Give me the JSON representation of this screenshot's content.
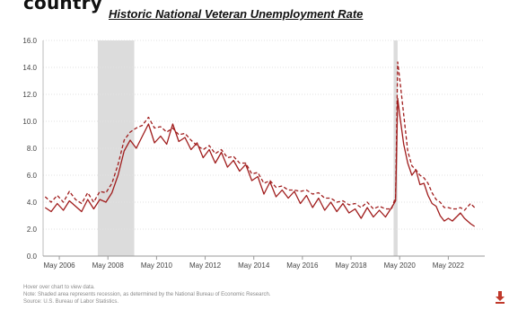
{
  "page": {
    "heading_word": "country",
    "notes": [
      "Hover over chart to view data.",
      "Note: Shaded area represents recession, as determined by the National Bureau of Economic Research.",
      "Source: U.S. Bureau of Labor Statistics."
    ],
    "download_icon": "download-icon"
  },
  "chart_data": {
    "type": "line",
    "title": "Historic National Veteran Unemployment Rate",
    "xlabel": "",
    "ylabel": "",
    "ylim": [
      0,
      16
    ],
    "yticks": [
      0.0,
      2.0,
      4.0,
      6.0,
      8.0,
      10.0,
      12.0,
      14.0,
      16.0
    ],
    "ytick_labels": [
      "0.0",
      "2.0",
      "4.0",
      "6.0",
      "8.0",
      "10.0",
      "12.0",
      "14.0",
      "16.0"
    ],
    "xlim": [
      "2005-09",
      "2023-11"
    ],
    "xticks": [
      "May 2006",
      "May 2008",
      "May 2010",
      "May 2012",
      "May 2014",
      "May 2016",
      "May 2018",
      "May 2020",
      "May 2022"
    ],
    "grid": true,
    "recessions": [
      {
        "start": "2007-12",
        "end": "2009-06"
      },
      {
        "start": "2020-02",
        "end": "2020-04"
      }
    ],
    "colors": {
      "series": "#a01c1c",
      "recession": "#dcdcdc",
      "grid": "#e2e2e2"
    },
    "series": [
      {
        "style": "solid",
        "points": [
          [
            "2005-10",
            3.6
          ],
          [
            "2006-01",
            3.3
          ],
          [
            "2006-04",
            3.9
          ],
          [
            "2006-07",
            3.4
          ],
          [
            "2006-10",
            4.1
          ],
          [
            "2007-01",
            3.7
          ],
          [
            "2007-04",
            3.3
          ],
          [
            "2007-07",
            4.2
          ],
          [
            "2007-10",
            3.5
          ],
          [
            "2008-01",
            4.2
          ],
          [
            "2008-04",
            4.0
          ],
          [
            "2008-07",
            4.7
          ],
          [
            "2008-10",
            6.0
          ],
          [
            "2009-01",
            7.8
          ],
          [
            "2009-04",
            8.6
          ],
          [
            "2009-07",
            8.0
          ],
          [
            "2009-10",
            8.9
          ],
          [
            "2010-01",
            9.8
          ],
          [
            "2010-04",
            8.4
          ],
          [
            "2010-07",
            8.9
          ],
          [
            "2010-10",
            8.3
          ],
          [
            "2011-01",
            9.8
          ],
          [
            "2011-04",
            8.5
          ],
          [
            "2011-07",
            8.8
          ],
          [
            "2011-10",
            7.9
          ],
          [
            "2012-01",
            8.4
          ],
          [
            "2012-04",
            7.3
          ],
          [
            "2012-07",
            7.9
          ],
          [
            "2012-10",
            6.9
          ],
          [
            "2013-01",
            7.7
          ],
          [
            "2013-04",
            6.6
          ],
          [
            "2013-07",
            7.1
          ],
          [
            "2013-10",
            6.3
          ],
          [
            "2014-01",
            6.8
          ],
          [
            "2014-04",
            5.6
          ],
          [
            "2014-07",
            5.9
          ],
          [
            "2014-10",
            4.6
          ],
          [
            "2015-01",
            5.5
          ],
          [
            "2015-04",
            4.4
          ],
          [
            "2015-07",
            4.9
          ],
          [
            "2015-10",
            4.3
          ],
          [
            "2016-01",
            4.8
          ],
          [
            "2016-04",
            3.9
          ],
          [
            "2016-07",
            4.5
          ],
          [
            "2016-10",
            3.6
          ],
          [
            "2017-01",
            4.3
          ],
          [
            "2017-04",
            3.4
          ],
          [
            "2017-07",
            4.0
          ],
          [
            "2017-10",
            3.3
          ],
          [
            "2018-01",
            3.9
          ],
          [
            "2018-04",
            3.2
          ],
          [
            "2018-07",
            3.5
          ],
          [
            "2018-10",
            2.8
          ],
          [
            "2019-01",
            3.6
          ],
          [
            "2019-04",
            2.9
          ],
          [
            "2019-07",
            3.4
          ],
          [
            "2019-10",
            2.9
          ],
          [
            "2020-01",
            3.6
          ],
          [
            "2020-03",
            4.1
          ],
          [
            "2020-04",
            11.7
          ],
          [
            "2020-05",
            10.5
          ],
          [
            "2020-07",
            8.3
          ],
          [
            "2020-09",
            6.9
          ],
          [
            "2020-11",
            6.0
          ],
          [
            "2021-01",
            6.4
          ],
          [
            "2021-03",
            5.3
          ],
          [
            "2021-05",
            5.4
          ],
          [
            "2021-07",
            4.5
          ],
          [
            "2021-09",
            3.9
          ],
          [
            "2021-11",
            3.7
          ],
          [
            "2022-01",
            3.0
          ],
          [
            "2022-03",
            2.6
          ],
          [
            "2022-05",
            2.8
          ],
          [
            "2022-07",
            2.6
          ],
          [
            "2022-09",
            2.9
          ],
          [
            "2022-11",
            3.2
          ],
          [
            "2023-01",
            2.8
          ],
          [
            "2023-04",
            2.4
          ],
          [
            "2023-06",
            2.2
          ]
        ]
      },
      {
        "style": "dashed",
        "points": [
          [
            "2005-10",
            4.4
          ],
          [
            "2006-01",
            4.0
          ],
          [
            "2006-04",
            4.5
          ],
          [
            "2006-07",
            4.0
          ],
          [
            "2006-10",
            4.8
          ],
          [
            "2007-01",
            4.2
          ],
          [
            "2007-04",
            3.9
          ],
          [
            "2007-07",
            4.7
          ],
          [
            "2007-10",
            4.0
          ],
          [
            "2008-01",
            4.8
          ],
          [
            "2008-04",
            4.7
          ],
          [
            "2008-07",
            5.4
          ],
          [
            "2008-10",
            6.8
          ],
          [
            "2009-01",
            8.6
          ],
          [
            "2009-04",
            9.2
          ],
          [
            "2009-07",
            9.5
          ],
          [
            "2009-10",
            9.7
          ],
          [
            "2010-01",
            10.3
          ],
          [
            "2010-04",
            9.5
          ],
          [
            "2010-07",
            9.6
          ],
          [
            "2010-10",
            9.2
          ],
          [
            "2011-01",
            9.5
          ],
          [
            "2011-04",
            9.0
          ],
          [
            "2011-07",
            9.1
          ],
          [
            "2011-10",
            8.6
          ],
          [
            "2012-01",
            8.2
          ],
          [
            "2012-04",
            7.9
          ],
          [
            "2012-07",
            8.2
          ],
          [
            "2012-10",
            7.6
          ],
          [
            "2013-01",
            7.9
          ],
          [
            "2013-04",
            7.3
          ],
          [
            "2013-07",
            7.4
          ],
          [
            "2013-10",
            6.9
          ],
          [
            "2014-01",
            6.9
          ],
          [
            "2014-04",
            6.1
          ],
          [
            "2014-07",
            6.2
          ],
          [
            "2014-10",
            5.4
          ],
          [
            "2015-01",
            5.6
          ],
          [
            "2015-04",
            5.1
          ],
          [
            "2015-07",
            5.2
          ],
          [
            "2015-10",
            4.9
          ],
          [
            "2016-01",
            4.9
          ],
          [
            "2016-04",
            4.8
          ],
          [
            "2016-07",
            4.9
          ],
          [
            "2016-10",
            4.6
          ],
          [
            "2017-01",
            4.7
          ],
          [
            "2017-04",
            4.3
          ],
          [
            "2017-07",
            4.3
          ],
          [
            "2017-10",
            4.0
          ],
          [
            "2018-01",
            4.1
          ],
          [
            "2018-04",
            3.8
          ],
          [
            "2018-07",
            3.9
          ],
          [
            "2018-10",
            3.6
          ],
          [
            "2019-01",
            4.0
          ],
          [
            "2019-04",
            3.5
          ],
          [
            "2019-07",
            3.7
          ],
          [
            "2019-10",
            3.5
          ],
          [
            "2020-01",
            3.5
          ],
          [
            "2020-03",
            4.4
          ],
          [
            "2020-04",
            14.4
          ],
          [
            "2020-05",
            13.2
          ],
          [
            "2020-07",
            10.5
          ],
          [
            "2020-09",
            7.8
          ],
          [
            "2020-11",
            6.7
          ],
          [
            "2021-01",
            6.4
          ],
          [
            "2021-03",
            6.0
          ],
          [
            "2021-05",
            5.8
          ],
          [
            "2021-07",
            5.4
          ],
          [
            "2021-09",
            4.7
          ],
          [
            "2021-11",
            4.2
          ],
          [
            "2022-01",
            4.0
          ],
          [
            "2022-03",
            3.6
          ],
          [
            "2022-05",
            3.6
          ],
          [
            "2022-07",
            3.5
          ],
          [
            "2022-09",
            3.5
          ],
          [
            "2022-11",
            3.6
          ],
          [
            "2023-01",
            3.4
          ],
          [
            "2023-04",
            3.9
          ],
          [
            "2023-06",
            3.6
          ]
        ]
      }
    ]
  }
}
